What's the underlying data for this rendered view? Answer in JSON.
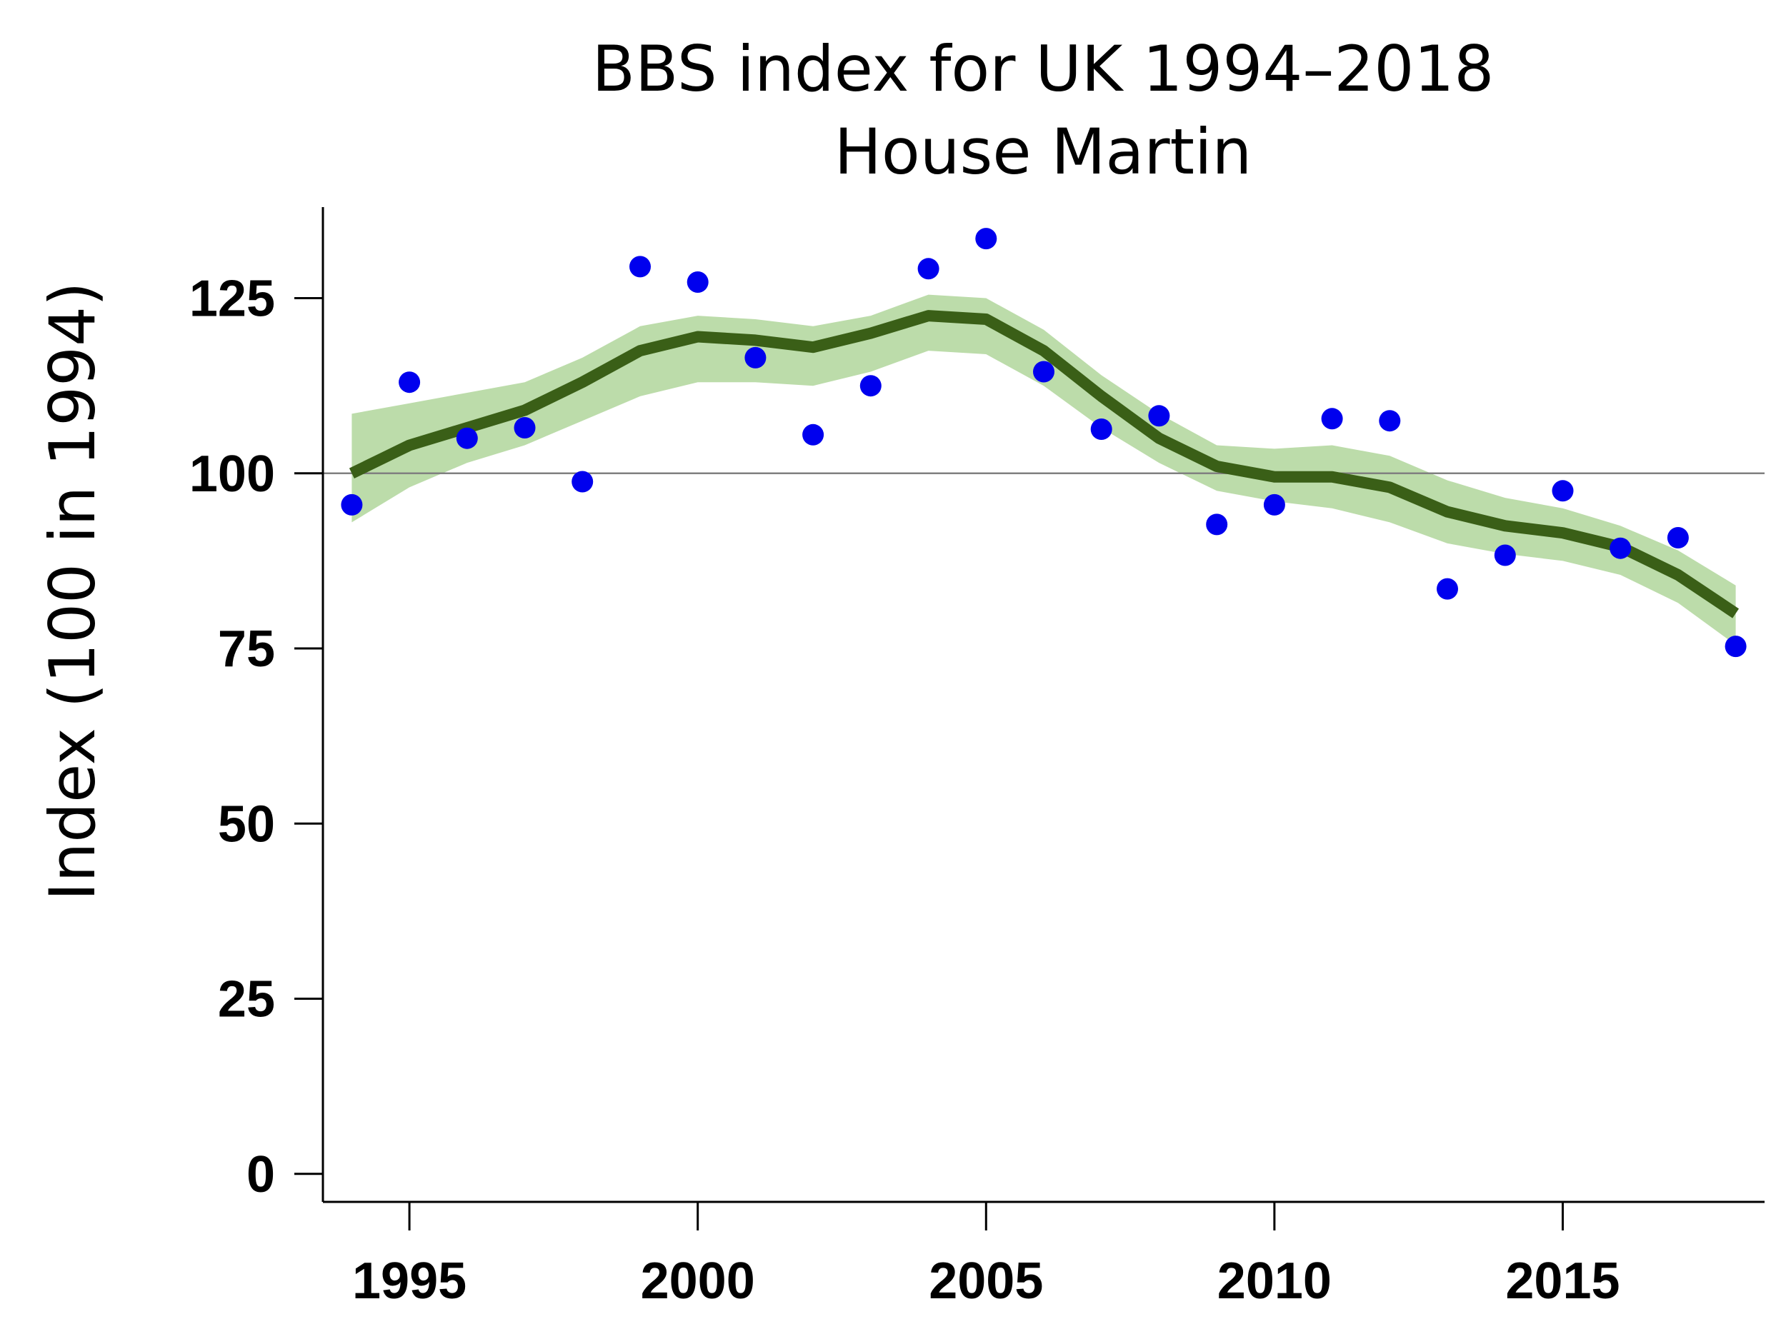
{
  "chart_data": {
    "type": "line",
    "title": "BBS index for UK 1994–2018",
    "subtitle": "House Martin",
    "xlabel": "",
    "ylabel": "Index (100 in 1994)",
    "xlim": [
      1993.5,
      2018.5
    ],
    "ylim": [
      -4,
      138
    ],
    "xticks": [
      1995,
      2000,
      2005,
      2010,
      2015
    ],
    "yticks": [
      0,
      25,
      50,
      75,
      100,
      125
    ],
    "reference_line": 100,
    "grid": false,
    "legend": "none",
    "years": [
      1994,
      1995,
      1996,
      1997,
      1998,
      1999,
      2000,
      2001,
      2002,
      2003,
      2004,
      2005,
      2006,
      2007,
      2008,
      2009,
      2010,
      2011,
      2012,
      2013,
      2014,
      2015,
      2016,
      2017,
      2018
    ],
    "series": [
      {
        "role": "smoothed_trend",
        "values": [
          100,
          104,
          106.5,
          109,
          113,
          117.5,
          119.5,
          119,
          118,
          120,
          122.5,
          122,
          117.5,
          111,
          105,
          101,
          99.5,
          99.5,
          98,
          94.5,
          92.5,
          91.5,
          89.5,
          85.5,
          80
        ]
      },
      {
        "role": "confidence_interval_lower",
        "values": [
          93,
          98,
          101.5,
          104,
          107.5,
          111,
          113,
          113,
          112.5,
          114.5,
          117.5,
          117,
          112.5,
          106.5,
          101.5,
          97.5,
          96,
          95,
          93,
          90,
          88.5,
          87.5,
          85.5,
          81.5,
          75.5
        ]
      },
      {
        "role": "confidence_interval_upper",
        "values": [
          108.5,
          110,
          111.5,
          113,
          116.5,
          121,
          122.5,
          122,
          121,
          122.5,
          125.5,
          125,
          120.5,
          114,
          108.5,
          104,
          103.5,
          104,
          102.5,
          99,
          96.5,
          95,
          92.5,
          89,
          84
        ]
      },
      {
        "role": "annual_index",
        "values": [
          95.5,
          113,
          105,
          106.5,
          98.8,
          129.5,
          127.3,
          116.5,
          105.5,
          112.5,
          129.2,
          133.5,
          114.5,
          106.3,
          108.2,
          92.7,
          95.5,
          107.8,
          107.5,
          83.5,
          88.3,
          97.5,
          89.3,
          90.8,
          75.3
        ]
      }
    ],
    "colors": {
      "trend": "#3a5f17",
      "band": "#bcdcaa",
      "points": "#0000ee",
      "reference": "#808080",
      "axis": "#000000"
    }
  }
}
